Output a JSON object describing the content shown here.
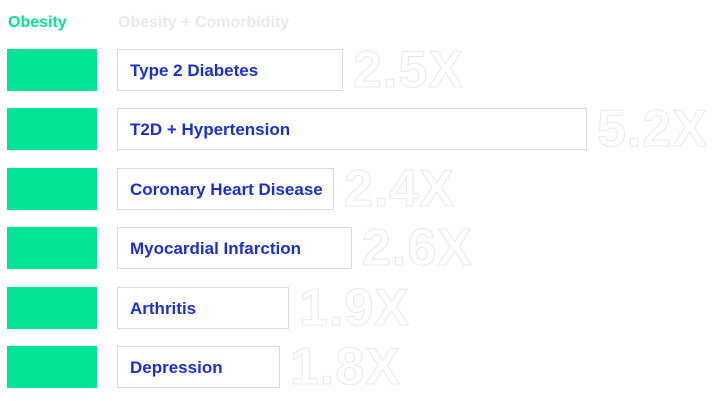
{
  "legend": {
    "obesity_label": "Obesity",
    "comorbidity_label": "Obesity + Comorbidity"
  },
  "colors": {
    "obesity": "#00e596",
    "label_text": "#1a2fd6",
    "header_comorbidity": "#e9e9e9",
    "ratio_text": "#e9e9e9"
  },
  "chart_data": {
    "type": "bar",
    "orientation": "horizontal",
    "title": "",
    "categories": [
      "Type 2 Diabetes",
      "T2D + Hypertension",
      "Coronary Heart Disease",
      "Myocardial Infarction",
      "Arthritis",
      "Depression"
    ],
    "series": [
      {
        "name": "Obesity",
        "values": [
          1,
          1,
          1,
          1,
          1,
          1
        ]
      },
      {
        "name": "Obesity + Comorbidity",
        "values": [
          2.5,
          5.2,
          2.4,
          2.6,
          1.9,
          1.8
        ]
      }
    ],
    "value_labels": [
      "2.5X",
      "5.2X",
      "2.4X",
      "2.6X",
      "1.9X",
      "1.8X"
    ],
    "grid": false,
    "legend_position": "top-left"
  }
}
